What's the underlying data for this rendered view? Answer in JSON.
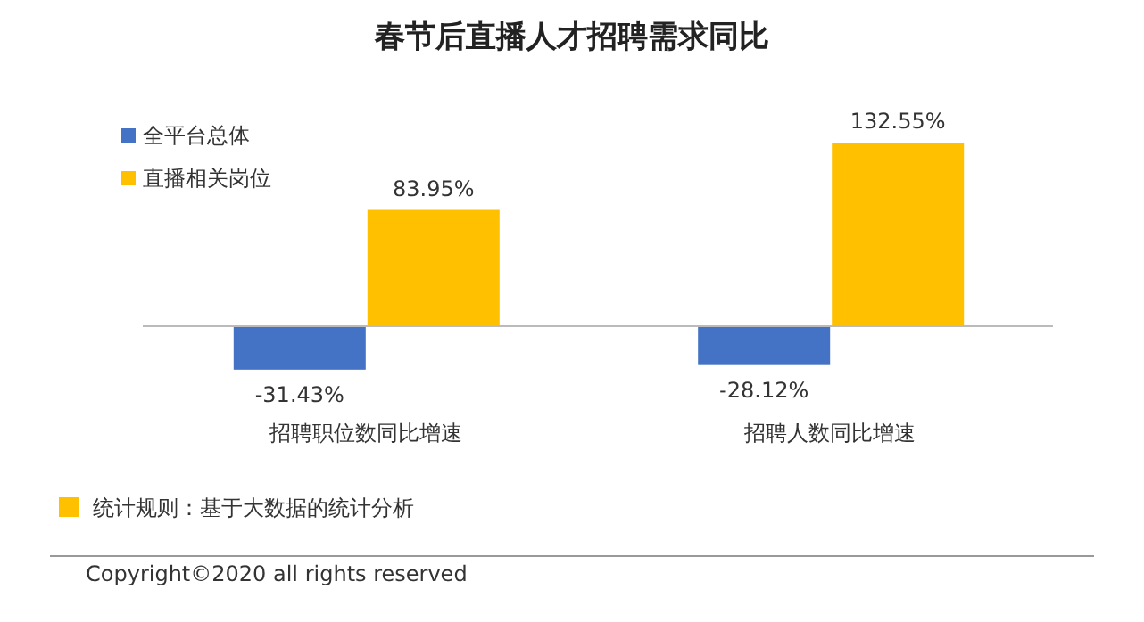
{
  "chart_data": {
    "type": "bar",
    "title": "春节后直播人才招聘需求同比",
    "categories": [
      "招聘职位数同比增速",
      "招聘人数同比增速"
    ],
    "series": [
      {
        "name": "全平台总体",
        "color": "#4472c4",
        "values": [
          -31.43,
          -28.12
        ],
        "value_labels": [
          "-31.43%",
          "-28.12%"
        ]
      },
      {
        "name": "直播相关岗位",
        "color": "#ffc000",
        "values": [
          83.95,
          132.55
        ],
        "value_labels": [
          "83.95%",
          "132.55%"
        ]
      }
    ],
    "legend": "top left",
    "annotations": [
      "统计规则：基于大数据的统计分析",
      "Copyright©2020 all rights reserved"
    ]
  }
}
